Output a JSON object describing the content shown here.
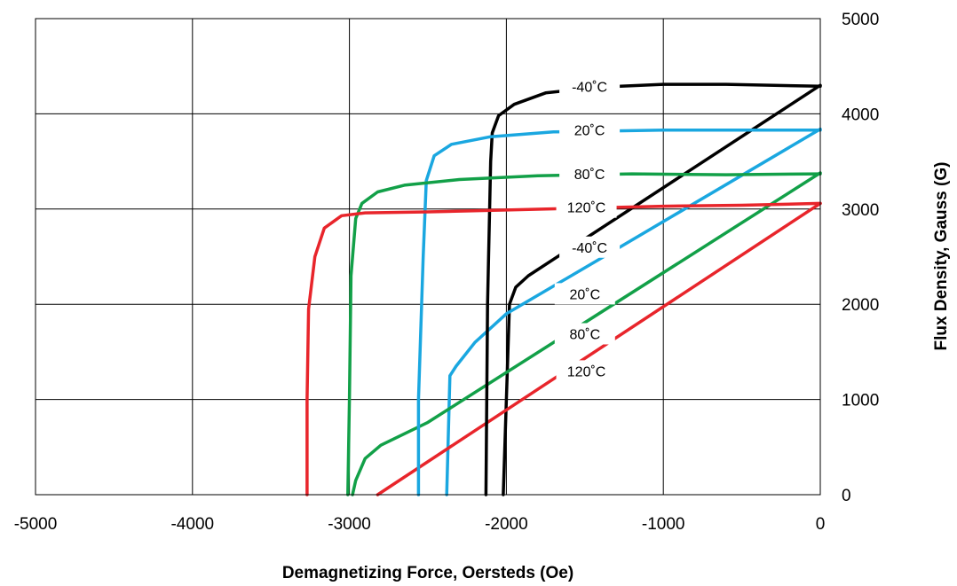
{
  "chart_data": {
    "type": "line",
    "xlabel": "Demagnetizing Force, Oersteds (Oe)",
    "ylabel": "Flux Density, Gauss (G)",
    "xlim": [
      -5000,
      0
    ],
    "ylim": [
      0,
      5000
    ],
    "x_ticks": [
      "-5000",
      "-4000",
      "-3000",
      "-2000",
      "-1000",
      "0"
    ],
    "y_ticks": [
      "0",
      "1000",
      "2000",
      "3000",
      "4000",
      "5000"
    ],
    "grid": true,
    "y_axis_position": "right",
    "colors": {
      "-40°C": "#000000",
      "20°C": "#1aa7e0",
      "80°C": "#12a048",
      "120°C": "#e8252b"
    },
    "series": [
      {
        "group": "B-H",
        "temp": "-40°C",
        "points": [
          [
            -2020,
            0
          ],
          [
            -1980,
            2000
          ],
          [
            -1940,
            2180
          ],
          [
            -1860,
            2300
          ],
          [
            0,
            4300
          ]
        ],
        "label": "-40˚C",
        "label_x": -1470,
        "label_y": 2600
      },
      {
        "group": "B-H",
        "temp": "20°C",
        "points": [
          [
            -2380,
            0
          ],
          [
            -2360,
            1250
          ],
          [
            -2320,
            1350
          ],
          [
            -2200,
            1600
          ],
          [
            -2000,
            1900
          ],
          [
            -1400,
            2480
          ],
          [
            0,
            3840
          ]
        ],
        "label": "20˚C",
        "label_x": -1500,
        "label_y": 2110
      },
      {
        "group": "B-H",
        "temp": "80°C",
        "points": [
          [
            -2980,
            0
          ],
          [
            -2960,
            150
          ],
          [
            -2900,
            380
          ],
          [
            -2800,
            520
          ],
          [
            -2500,
            760
          ],
          [
            0,
            3380
          ]
        ],
        "label": "80˚C",
        "label_x": -1500,
        "label_y": 1690
      },
      {
        "group": "B-H",
        "temp": "120°C",
        "points": [
          [
            -2820,
            0
          ],
          [
            0,
            3060
          ]
        ],
        "label": "120˚C",
        "label_x": -1490,
        "label_y": 1300
      },
      {
        "group": "intrinsic",
        "temp": "-40°C",
        "points": [
          [
            -2130,
            0
          ],
          [
            -2120,
            2000
          ],
          [
            -2100,
            3500
          ],
          [
            -2090,
            3800
          ],
          [
            -2050,
            3980
          ],
          [
            -1950,
            4100
          ],
          [
            -1750,
            4220
          ],
          [
            -1400,
            4280
          ],
          [
            -1000,
            4310
          ],
          [
            -600,
            4310
          ],
          [
            0,
            4290
          ]
        ],
        "label": "-40˚C",
        "label_x": -1470,
        "label_y": 4290
      },
      {
        "group": "intrinsic",
        "temp": "20°C",
        "points": [
          [
            -2560,
            0
          ],
          [
            -2560,
            1000
          ],
          [
            -2530,
            2500
          ],
          [
            -2510,
            3300
          ],
          [
            -2460,
            3560
          ],
          [
            -2350,
            3680
          ],
          [
            -2100,
            3760
          ],
          [
            -1700,
            3810
          ],
          [
            -1000,
            3830
          ],
          [
            0,
            3830
          ]
        ],
        "label": "20˚C",
        "label_x": -1470,
        "label_y": 3830
      },
      {
        "group": "intrinsic",
        "temp": "80°C",
        "points": [
          [
            -3010,
            0
          ],
          [
            -3000,
            1000
          ],
          [
            -2990,
            2300
          ],
          [
            -2960,
            2900
          ],
          [
            -2920,
            3060
          ],
          [
            -2820,
            3180
          ],
          [
            -2650,
            3250
          ],
          [
            -2300,
            3310
          ],
          [
            -1800,
            3350
          ],
          [
            -1200,
            3370
          ],
          [
            -600,
            3360
          ],
          [
            0,
            3370
          ]
        ],
        "label": "80˚C",
        "label_x": -1470,
        "label_y": 3370
      },
      {
        "group": "intrinsic",
        "temp": "120°C",
        "points": [
          [
            -3270,
            0
          ],
          [
            -3270,
            1000
          ],
          [
            -3260,
            1950
          ],
          [
            -3220,
            2500
          ],
          [
            -3160,
            2800
          ],
          [
            -3050,
            2930
          ],
          [
            -2900,
            2960
          ],
          [
            -2500,
            2970
          ],
          [
            -2000,
            2990
          ],
          [
            -1500,
            3010
          ],
          [
            -1000,
            3030
          ],
          [
            -500,
            3040
          ],
          [
            0,
            3060
          ]
        ],
        "label": "120˚C",
        "label_x": -1490,
        "label_y": 3020
      }
    ]
  }
}
